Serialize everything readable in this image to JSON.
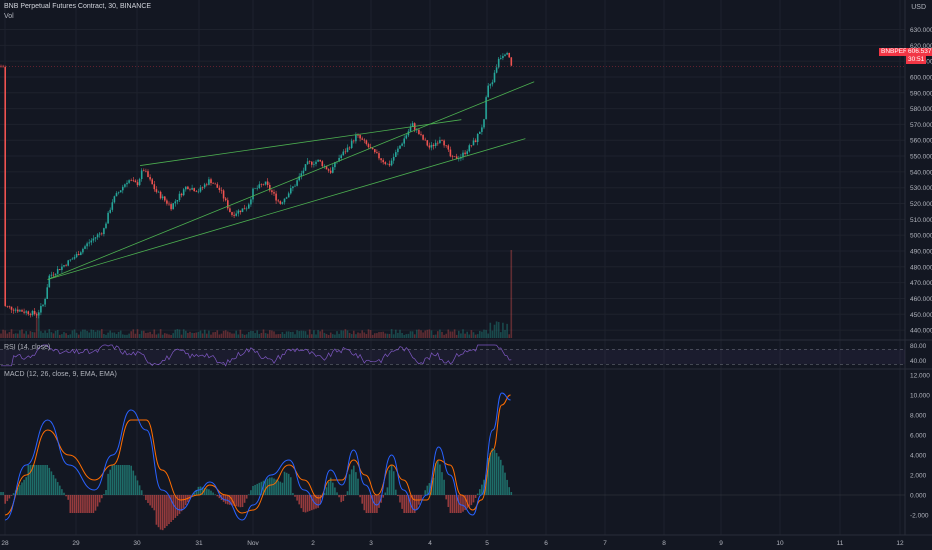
{
  "header": {
    "title": "BNB Perpetual Futures Contract, 30, BINANCE",
    "volume_label": "Vol",
    "currency": "USD",
    "rsi_label": "RSI (14, close)",
    "macd_label": "MACD (12, 26, close, 9, EMA, EMA)"
  },
  "last_price": {
    "symbol": "BNBPERP",
    "price": "606.537",
    "countdown": "30:51"
  },
  "colors": {
    "background": "#131722",
    "grid": "#1e222d",
    "up": "#26a69a",
    "down": "#ef5350",
    "trendline": "#4caf50",
    "rsi": "#7e57c2",
    "macd": "#2962ff",
    "signal": "#ff6d00",
    "hist_up": "#26a69a",
    "hist_down": "#ef5350",
    "price_tag": "#f23645"
  },
  "chart_data": [
    {
      "type": "candlestick",
      "panel": "price",
      "interval": "30 minutes",
      "x_axis_ticks": [
        "28",
        "29",
        "30",
        "31",
        "Nov",
        "2",
        "3",
        "4",
        "5",
        "6",
        "7",
        "8",
        "9",
        "10",
        "11",
        "12"
      ],
      "y_axis_ticks": [
        "630.000",
        "620.000",
        "610.000",
        "600.000",
        "590.000",
        "580.000",
        "570.000",
        "560.000",
        "550.000",
        "540.000",
        "530.000",
        "520.000",
        "510.000",
        "500.000",
        "490.000",
        "480.000",
        "470.000",
        "460.000",
        "450.000",
        "440.000"
      ],
      "ylim": [
        435,
        636
      ],
      "close_path": [
        [
          "28",
          455
        ],
        [
          "28.25",
          452
        ],
        [
          "28.45",
          450
        ],
        [
          "28.55",
          457
        ],
        [
          "28.62",
          474
        ],
        [
          "28.8",
          480
        ],
        [
          "29",
          487
        ],
        [
          "29.2",
          495
        ],
        [
          "29.45",
          503
        ],
        [
          "29.6",
          522
        ],
        [
          "29.85",
          535
        ],
        [
          "30",
          532
        ],
        [
          "30.1",
          542
        ],
        [
          "30.3",
          528
        ],
        [
          "30.55",
          518
        ],
        [
          "30.8",
          531
        ],
        [
          "31",
          528
        ],
        [
          "31.2",
          535
        ],
        [
          "31.4",
          528
        ],
        [
          "31.6",
          513
        ],
        [
          "31.9",
          518
        ],
        [
          "Nov 1",
          528
        ],
        [
          "Nov 1.2",
          533
        ],
        [
          "Nov 1.45",
          520
        ],
        [
          "Nov 1.7",
          532
        ],
        [
          "Nov 1.9",
          545
        ],
        [
          "Nov 2.1",
          547
        ],
        [
          "Nov 2.3",
          540
        ],
        [
          "Nov 2.45",
          549
        ],
        [
          "Nov 2.6",
          555
        ],
        [
          "Nov 2.75",
          563
        ],
        [
          "Nov 2.9",
          558
        ],
        [
          "Nov 3.05",
          552
        ],
        [
          "Nov 3.3",
          544
        ],
        [
          "Nov 3.5",
          557
        ],
        [
          "Nov 3.7",
          570
        ],
        [
          "Nov 3.85",
          562
        ],
        [
          "Nov 4.0",
          555
        ],
        [
          "Nov 4.2",
          562
        ],
        [
          "Nov 4.38",
          548
        ],
        [
          "Nov 4.55",
          550
        ],
        [
          "Nov 4.8",
          560
        ],
        [
          "Nov 4.95",
          572
        ],
        [
          "Nov 5.0",
          592
        ],
        [
          "Nov 5.1",
          598
        ],
        [
          "Nov 5.2",
          612
        ],
        [
          "Nov 5.35",
          617
        ],
        [
          "Nov 5.42",
          606.537
        ]
      ],
      "volume_spike": "Nov 5",
      "trendlines": [
        {
          "from": [
            "28.6",
            472
          ],
          "to": [
            "Nov 5.8",
            597
          ]
        },
        {
          "from": [
            "30.05",
            544
          ],
          "to": [
            "Nov 4.55",
            573
          ]
        },
        {
          "from": [
            "28.6",
            472
          ],
          "to": [
            "Nov 5.65",
            561
          ]
        }
      ]
    },
    {
      "type": "line",
      "panel": "rsi",
      "title": "RSI (14, close)",
      "y_axis_ticks": [
        "80.00",
        "40.00"
      ],
      "levels": [
        70,
        30
      ],
      "ylim": [
        20,
        90
      ]
    },
    {
      "type": "line",
      "panel": "macd",
      "title": "MACD (12, 26, close, 9, EMA, EMA)",
      "y_axis_ticks": [
        "12.000",
        "10.000",
        "8.000",
        "6.000",
        "4.000",
        "2.000",
        "0.000",
        "-2.000"
      ],
      "ylim": [
        -3,
        12.5
      ],
      "series": [
        {
          "name": "MACD",
          "x": [
            "28",
            "28.3",
            "28.6",
            "28.9",
            "29.3",
            "29.6",
            "29.9",
            "30.15",
            "30.4",
            "30.7",
            "31.0",
            "31.2",
            "31.5",
            "31.8",
            "Nov 1",
            "Nov 1.3",
            "Nov 1.6",
            "Nov 1.85",
            "Nov 2.1",
            "Nov 2.3",
            "Nov 2.5",
            "Nov 2.7",
            "Nov 2.9",
            "Nov 3.1",
            "Nov 3.35",
            "Nov 3.55",
            "Nov 3.75",
            "Nov 3.95",
            "Nov 4.15",
            "Nov 4.35",
            "Nov 4.55",
            "Nov 4.75",
            "Nov 4.9",
            "Nov 5.1",
            "Nov 5.25",
            "Nov 5.4"
          ],
          "values": [
            -2.5,
            3,
            7.5,
            3,
            0.5,
            4,
            8.5,
            6.5,
            0.5,
            -1.5,
            0.5,
            1.3,
            -0.5,
            -2.5,
            -1.0,
            2.0,
            3.5,
            0.5,
            -1.0,
            2.5,
            1.0,
            4.5,
            1.0,
            -1.0,
            4.0,
            0.5,
            -1.5,
            0.0,
            4.8,
            2.0,
            -1.0,
            -2.0,
            0.0,
            6.5,
            10.2,
            9.5
          ]
        },
        {
          "name": "Signal",
          "x": [
            "28",
            "28.3",
            "28.6",
            "28.9",
            "29.3",
            "29.6",
            "29.9",
            "30.15",
            "30.4",
            "30.7",
            "31.0",
            "31.2",
            "31.5",
            "31.8",
            "Nov 1",
            "Nov 1.3",
            "Nov 1.6",
            "Nov 1.85",
            "Nov 2.1",
            "Nov 2.3",
            "Nov 2.5",
            "Nov 2.7",
            "Nov 2.9",
            "Nov 3.1",
            "Nov 3.35",
            "Nov 3.55",
            "Nov 3.75",
            "Nov 3.95",
            "Nov 4.15",
            "Nov 4.35",
            "Nov 4.55",
            "Nov 4.75",
            "Nov 4.9",
            "Nov 5.1",
            "Nov 5.25",
            "Nov 5.4"
          ],
          "values": [
            -2.0,
            2.0,
            6.5,
            4.0,
            1.5,
            3.0,
            7.5,
            7.5,
            2.5,
            -0.5,
            0.0,
            1.0,
            0.0,
            -1.8,
            -1.5,
            1.0,
            3.0,
            1.5,
            -0.3,
            1.5,
            1.5,
            3.5,
            2.0,
            0.0,
            3.0,
            1.5,
            -0.5,
            -0.5,
            3.5,
            3.0,
            0.0,
            -1.5,
            -0.5,
            4.5,
            9.0,
            10.0
          ]
        }
      ]
    }
  ]
}
